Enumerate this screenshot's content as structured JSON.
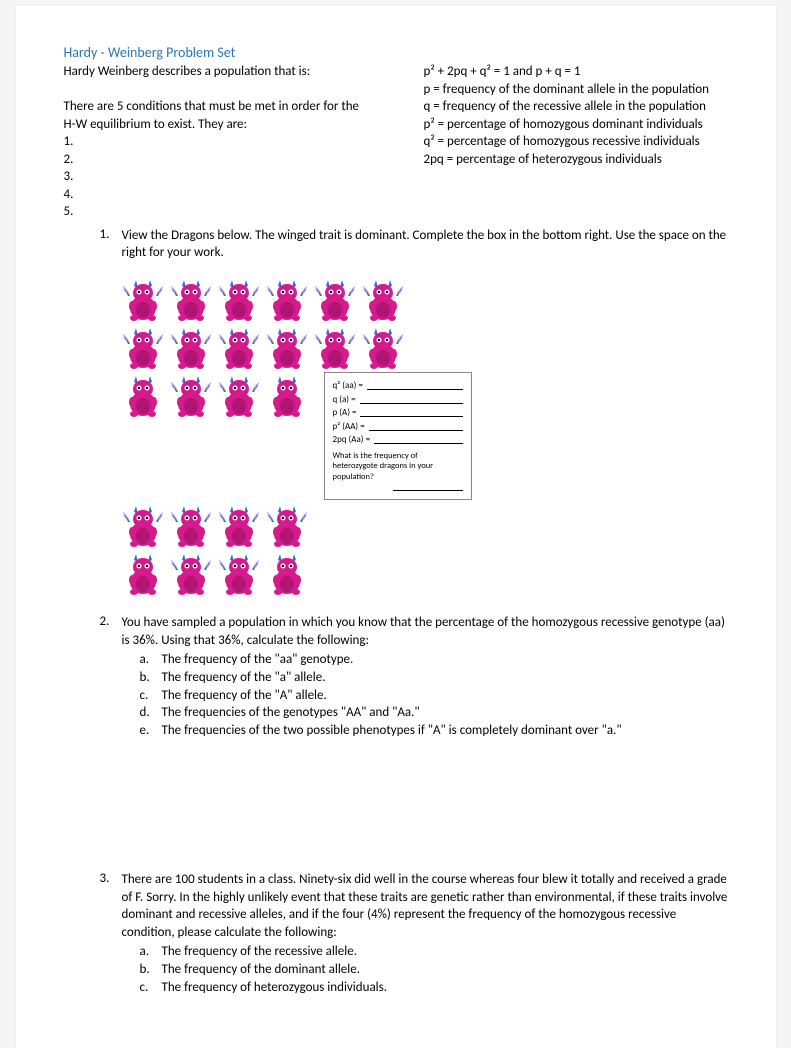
{
  "title": "Hardy - Weinberg Problem Set",
  "intro_left": {
    "l1": "Hardy Weinberg describes a population that is:",
    "l2": "",
    "l3": "There are 5 conditions that must be met in order for the",
    "l4": "H-W equilibrium to exist. They are:"
  },
  "numbers": [
    "1.",
    "2.",
    "3.",
    "4.",
    "5."
  ],
  "intro_right": {
    "eq": "p² + 2pq + q² = 1 and p + q = 1",
    "p": "p = frequency of the dominant allele in the population",
    "q": "q = frequency of the recessive allele in the population",
    "p2": "p² = percentage of homozygous dominant individuals",
    "q2": "q² = percentage of homozygous recessive individuals",
    "tpq": "2pq = percentage of heterozygous individuals"
  },
  "problem1": {
    "num": "1.",
    "text": "View the Dragons below.  The winged trait is dominant. Complete the box in the bottom right. Use the space on the right for your work."
  },
  "dragons": {
    "rows": [
      [
        "W",
        "W",
        "W",
        "W",
        "W",
        "W"
      ],
      [
        "W",
        "W",
        "W",
        "W",
        "W",
        "W"
      ],
      [
        "N",
        "W",
        "W",
        "N"
      ],
      [
        "W",
        "W",
        "W",
        "W"
      ],
      [
        "N",
        "W",
        "W",
        "N"
      ]
    ],
    "body_color": "#d61a8e",
    "wing_color": "#4a5fd6",
    "horn_color": "#4a5fd6",
    "belly_color": "#b01576"
  },
  "answer_box": {
    "lines": [
      "q²  (aa) =",
      "q   (a)  =",
      "p   (A)  =",
      "p²  (AA) =",
      "2pq (Aa) ="
    ],
    "ques": "What is the frequency of heterozygote dragons in your population?"
  },
  "problem2": {
    "num": "2.",
    "text": "You have sampled a population in which you know that the percentage of the homozygous recessive genotype (aa) is 36%. Using that 36%, calculate the following:",
    "subs": [
      {
        "l": "a.",
        "t": "The frequency of the \"aa\" genotype."
      },
      {
        "l": "b.",
        "t": "The frequency of the \"a\" allele."
      },
      {
        "l": "c.",
        "t": "The frequency of the \"A\" allele."
      },
      {
        "l": "d.",
        "t": "The frequencies of the genotypes \"AA\" and \"Aa.\""
      },
      {
        "l": "e.",
        "t": "The frequencies of the two possible phenotypes if \"A\" is completely dominant over \"a.\""
      }
    ]
  },
  "problem3": {
    "num": "3.",
    "text": "There are 100 students in a class. Ninety-six did well in the course whereas four blew it totally and received a grade of F. Sorry. In the highly unlikely event that these traits are genetic rather than environmental, if these traits involve dominant and recessive alleles, and if the four (4%) represent the frequency of the homozygous recessive condition, please calculate the following:",
    "subs": [
      {
        "l": "a.",
        "t": "The frequency of the recessive allele."
      },
      {
        "l": "b.",
        "t": "The frequency of the dominant allele."
      },
      {
        "l": "c.",
        "t": "The frequency of heterozygous individuals."
      }
    ]
  }
}
